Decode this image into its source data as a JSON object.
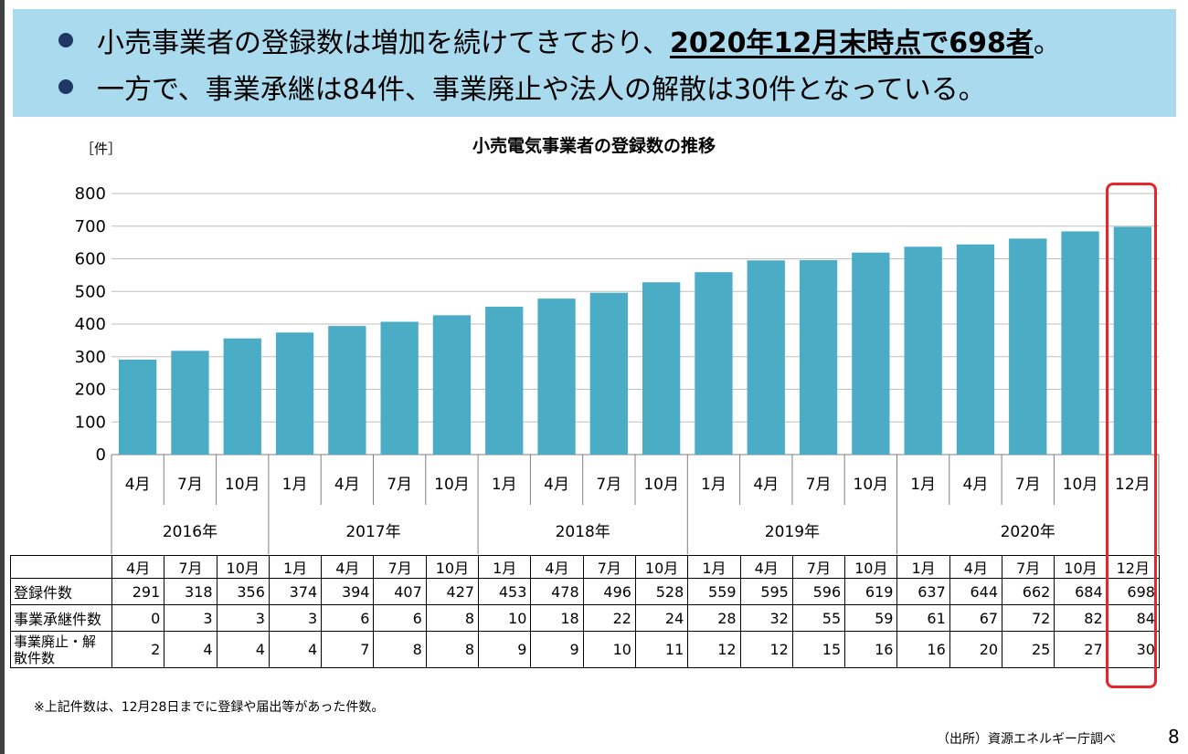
{
  "header": {
    "bullet1_text": "小売事業者の登録数は増加を続けてきており、",
    "bullet1_highlight": "2020年12月末時点で698者",
    "bullet1_end": "。",
    "bullet2_text": "一方で、事業承継は84件、事業廃止や法人の解散は30件となっている。"
  },
  "chart_data": {
    "type": "bar",
    "title": "小売電気事業者の登録数の推移",
    "unit_label": "［件］",
    "ylim": [
      0,
      800
    ],
    "yticks": [
      0,
      100,
      200,
      300,
      400,
      500,
      600,
      700,
      800
    ],
    "bar_color": "#4bacc6",
    "highlight_color": "#e8262a",
    "categories": [
      "4月",
      "7月",
      "10月",
      "1月",
      "4月",
      "7月",
      "10月",
      "1月",
      "4月",
      "7月",
      "10月",
      "1月",
      "4月",
      "7月",
      "10月",
      "1月",
      "4月",
      "7月",
      "10月",
      "12月"
    ],
    "years": [
      {
        "label": "2016年",
        "count": 3
      },
      {
        "label": "2017年",
        "count": 4
      },
      {
        "label": "2018年",
        "count": 4
      },
      {
        "label": "2019年",
        "count": 4
      },
      {
        "label": "2020年",
        "count": 5
      }
    ],
    "series": [
      {
        "name": "登録件数",
        "values": [
          291,
          318,
          356,
          374,
          394,
          407,
          427,
          453,
          478,
          496,
          528,
          559,
          595,
          596,
          619,
          637,
          644,
          662,
          684,
          698
        ]
      }
    ],
    "table_rows": [
      {
        "label": "登録件数",
        "values": [
          291,
          318,
          356,
          374,
          394,
          407,
          427,
          453,
          478,
          496,
          528,
          559,
          595,
          596,
          619,
          637,
          644,
          662,
          684,
          698
        ]
      },
      {
        "label": "事業承継件数",
        "values": [
          0,
          3,
          3,
          3,
          6,
          6,
          8,
          10,
          18,
          22,
          24,
          28,
          32,
          55,
          59,
          61,
          67,
          72,
          82,
          84
        ]
      },
      {
        "label": "事業廃止・解散件数",
        "values": [
          2,
          4,
          4,
          4,
          7,
          8,
          8,
          9,
          9,
          10,
          11,
          12,
          12,
          15,
          16,
          16,
          20,
          25,
          27,
          30
        ]
      }
    ],
    "table_header_labels": [
      "4月",
      "7月",
      "10月",
      "1月",
      "4月",
      "7月",
      "10月",
      "1月",
      "4月",
      "7月",
      "10月",
      "1月",
      "4月",
      "7月",
      "10月",
      "1月",
      "4月",
      "7月",
      "10月",
      "12月"
    ]
  },
  "footer": {
    "note": "※上記件数は、12月28日までに登録や届出等があった件数。",
    "source": "（出所）資源エネルギー庁調べ",
    "page_number": "8"
  }
}
